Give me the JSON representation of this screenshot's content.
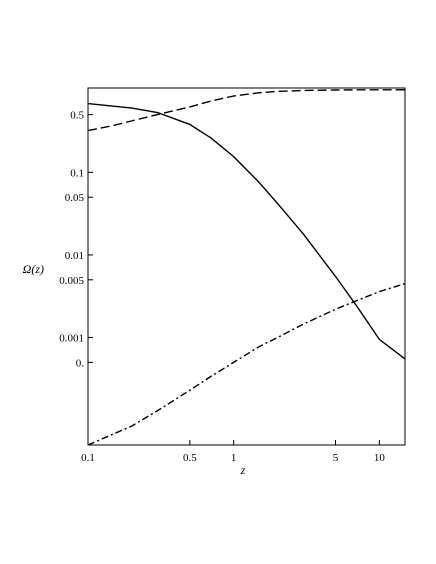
{
  "chart_data": {
    "type": "line",
    "xlabel": "z",
    "ylabel": "Ω(z)",
    "xscale": "log",
    "yscale": "log",
    "xlim": [
      0.1,
      15
    ],
    "ylim": [
      5e-05,
      1.05
    ],
    "grid": false,
    "x_ticks": [
      {
        "value": 0.1,
        "label": "0.1"
      },
      {
        "value": 0.5,
        "label": "0.5"
      },
      {
        "value": 1,
        "label": "1"
      },
      {
        "value": 5,
        "label": "5"
      },
      {
        "value": 10,
        "label": "10"
      }
    ],
    "y_ticks": [
      {
        "value": 0.5,
        "label": "0.5"
      },
      {
        "value": 0.1,
        "label": "0.1"
      },
      {
        "value": 0.05,
        "label": "0.05"
      },
      {
        "value": 0.01,
        "label": "0.01"
      },
      {
        "value": 0.005,
        "label": "0.005"
      },
      {
        "value": 0.001,
        "label": "0.001"
      },
      {
        "value": 0.0005,
        "label": "0."
      }
    ],
    "series": [
      {
        "style": "solid",
        "x": [
          0.1,
          0.2,
          0.3,
          0.5,
          0.7,
          1,
          1.5,
          2,
          3,
          5,
          7,
          10,
          15
        ],
        "y": [
          0.68,
          0.6,
          0.53,
          0.38,
          0.26,
          0.155,
          0.075,
          0.042,
          0.018,
          0.0055,
          0.0024,
          0.00095,
          0.00055
        ]
      },
      {
        "style": "dashed",
        "x": [
          0.1,
          0.15,
          0.2,
          0.3,
          0.5,
          0.7,
          1,
          1.5,
          2,
          3,
          5,
          7,
          10,
          15
        ],
        "y": [
          0.32,
          0.37,
          0.42,
          0.5,
          0.62,
          0.73,
          0.84,
          0.92,
          0.955,
          0.98,
          0.993,
          0.997,
          0.999,
          1.0
        ]
      },
      {
        "style": "dashdot",
        "x": [
          0.1,
          0.2,
          0.3,
          0.5,
          0.7,
          1,
          1.5,
          2,
          3,
          5,
          7,
          10,
          15
        ],
        "y": [
          5e-05,
          8.5e-05,
          0.00013,
          0.00023,
          0.00034,
          0.0005,
          0.00078,
          0.001,
          0.00145,
          0.0022,
          0.0028,
          0.0036,
          0.0045
        ]
      }
    ]
  }
}
